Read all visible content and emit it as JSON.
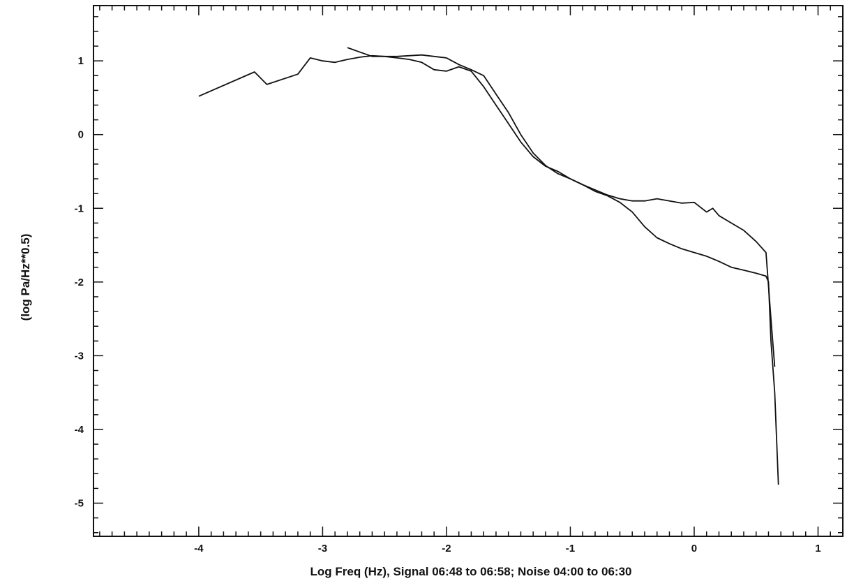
{
  "chart_data": {
    "type": "line",
    "title": "",
    "xlabel": "Log Freq (Hz), Signal 06:48 to 06:58; Noise 04:00 to 06:30",
    "ylabel": "(log Pa/Hz**0.5)",
    "xlim": [
      -4.85,
      1.2
    ],
    "ylim": [
      -5.45,
      1.75
    ],
    "x_ticks": [
      -4,
      -3,
      -2,
      -1,
      0,
      1
    ],
    "y_ticks": [
      1,
      0,
      -1,
      -2,
      -3,
      -4,
      -5
    ],
    "x_tick_labels": [
      "-4",
      "-3",
      "-2",
      "-1",
      "0",
      "1"
    ],
    "y_tick_labels": [
      "1",
      "0",
      "-1",
      "-2",
      "-3",
      "-4",
      "-5"
    ],
    "grid": false,
    "legend": "none",
    "line_color": "#111111",
    "series": [
      {
        "x": [
          -4.0,
          -3.55,
          -3.45,
          -3.2,
          -3.1,
          -3.0,
          -2.9,
          -2.8,
          -2.7,
          -2.6,
          -2.5,
          -2.4,
          -2.3,
          -2.2,
          -2.1,
          -2.0,
          -1.9,
          -1.8,
          -1.7,
          -1.6,
          -1.5,
          -1.4,
          -1.3,
          -1.2,
          -1.1,
          -1.0,
          -0.9,
          -0.8,
          -0.7,
          -0.6,
          -0.5,
          -0.4,
          -0.3,
          -0.2,
          -0.1,
          0.0,
          0.1,
          0.2,
          0.3,
          0.4,
          0.5,
          0.58,
          0.6,
          0.62,
          0.65,
          0.68
        ],
        "y": [
          0.52,
          0.85,
          0.68,
          0.82,
          1.04,
          1.0,
          0.98,
          1.02,
          1.05,
          1.07,
          1.06,
          1.04,
          1.02,
          0.98,
          0.88,
          0.86,
          0.92,
          0.86,
          0.65,
          0.4,
          0.15,
          -0.1,
          -0.3,
          -0.43,
          -0.5,
          -0.6,
          -0.68,
          -0.77,
          -0.83,
          -0.92,
          -1.05,
          -1.25,
          -1.4,
          -1.48,
          -1.55,
          -1.6,
          -1.65,
          -1.72,
          -1.8,
          -1.84,
          -1.88,
          -1.92,
          -2.0,
          -2.8,
          -3.5,
          -4.75
        ]
      },
      {
        "x": [
          -2.8,
          -2.6,
          -2.4,
          -2.2,
          -2.0,
          -1.9,
          -1.8,
          -1.7,
          -1.6,
          -1.5,
          -1.4,
          -1.3,
          -1.2,
          -1.1,
          -1.0,
          -0.9,
          -0.8,
          -0.7,
          -0.6,
          -0.5,
          -0.4,
          -0.3,
          -0.2,
          -0.1,
          0.0,
          0.1,
          0.15,
          0.2,
          0.3,
          0.4,
          0.5,
          0.58,
          0.62,
          0.65
        ],
        "y": [
          1.18,
          1.06,
          1.06,
          1.08,
          1.04,
          0.95,
          0.88,
          0.8,
          0.55,
          0.3,
          0.0,
          -0.25,
          -0.42,
          -0.53,
          -0.6,
          -0.68,
          -0.75,
          -0.82,
          -0.87,
          -0.9,
          -0.9,
          -0.87,
          -0.9,
          -0.93,
          -0.92,
          -1.05,
          -1.0,
          -1.1,
          -1.2,
          -1.3,
          -1.45,
          -1.6,
          -2.5,
          -3.15
        ]
      }
    ]
  }
}
